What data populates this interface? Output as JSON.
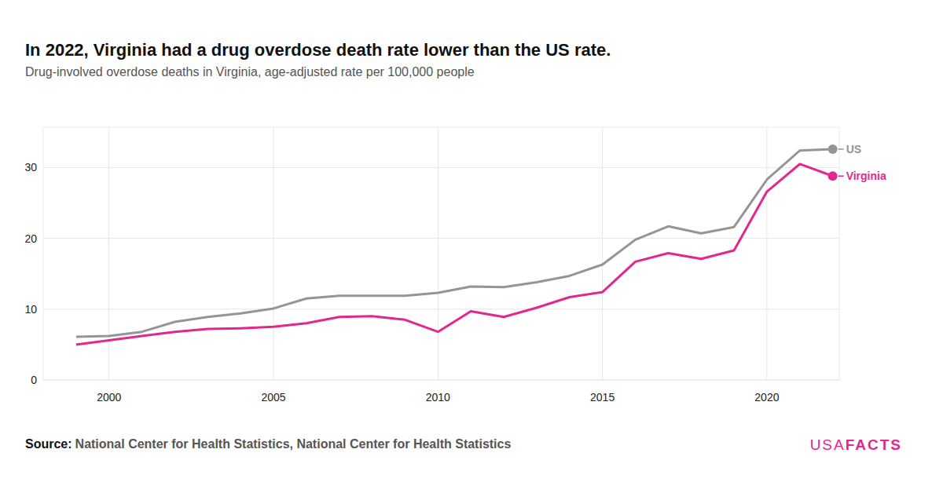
{
  "chart_data": {
    "type": "line",
    "title": "In 2022, Virginia had a drug overdose death rate lower than the US rate.",
    "subtitle": "Drug-involved overdose deaths in Virginia, age-adjusted rate per 100,000 people",
    "source_label": "Source:",
    "source": "National Center for Health Statistics, National Center for Health Statistics",
    "brand": [
      "USA",
      "FACTS"
    ],
    "x": [
      1999,
      2000,
      2001,
      2002,
      2003,
      2004,
      2005,
      2006,
      2007,
      2008,
      2009,
      2010,
      2011,
      2012,
      2013,
      2014,
      2015,
      2016,
      2017,
      2018,
      2019,
      2020,
      2021,
      2022
    ],
    "series": [
      {
        "name": "US",
        "color": "#959595",
        "marker": "last",
        "values": [
          6.1,
          6.2,
          6.8,
          8.2,
          8.9,
          9.4,
          10.1,
          11.5,
          11.9,
          11.9,
          11.9,
          12.3,
          13.2,
          13.1,
          13.8,
          14.7,
          16.3,
          19.8,
          21.7,
          20.7,
          21.6,
          28.3,
          32.4,
          32.6
        ]
      },
      {
        "name": "Virginia",
        "color": "#e2288e",
        "marker": "last",
        "values": [
          5.0,
          5.6,
          6.2,
          6.8,
          7.2,
          7.3,
          7.5,
          8.0,
          8.9,
          9.0,
          8.5,
          6.8,
          9.7,
          8.9,
          10.2,
          11.7,
          12.4,
          16.7,
          17.9,
          17.1,
          18.3,
          26.6,
          30.5,
          28.8
        ]
      }
    ],
    "xlim": [
      1998,
      2022.2
    ],
    "xticks": [
      2000,
      2005,
      2010,
      2015,
      2020
    ],
    "ylim": [
      0,
      35.7
    ],
    "yticks": [
      0,
      10,
      20,
      30
    ],
    "grid": true
  }
}
